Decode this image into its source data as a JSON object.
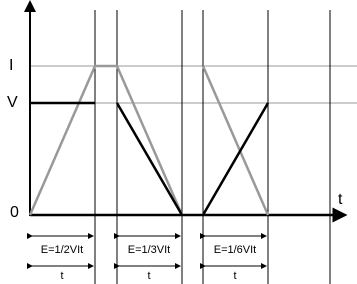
{
  "axis_labels": {
    "current": "I",
    "voltage": "V",
    "origin": "0",
    "time": "t"
  },
  "segments": [
    {
      "energy": "E=1/2VIt",
      "duration": "t"
    },
    {
      "energy": "E=1/3VIt",
      "duration": "t"
    },
    {
      "energy": "E=1/6VIt",
      "duration": "t"
    }
  ]
}
